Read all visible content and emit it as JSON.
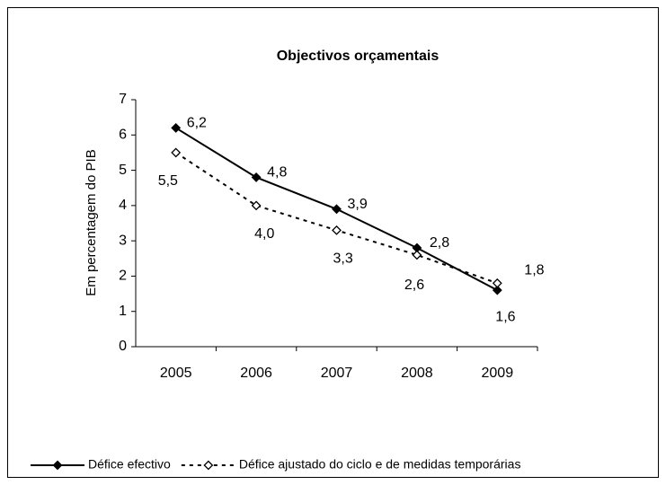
{
  "chart_data": {
    "type": "line",
    "title": "Objectivos orçamentais",
    "y_label": "Em percentagem do PIB",
    "categories": [
      "2005",
      "2006",
      "2007",
      "2008",
      "2009"
    ],
    "series": [
      {
        "name": "Défice efectivo",
        "color": "#000000",
        "style": "solid",
        "marker": "filled",
        "values": [
          6.2,
          4.8,
          3.9,
          2.8,
          1.6
        ],
        "value_labels": [
          "6,2",
          "4,8",
          "3,9",
          "2,8",
          "1,6"
        ]
      },
      {
        "name": "Défice ajustado do ciclo e de medidas temporárias",
        "color": "#000000",
        "style": "dashed",
        "marker": "hollow",
        "values": [
          5.5,
          4.0,
          3.3,
          2.6,
          1.8
        ],
        "value_labels": [
          "5,5",
          "4,0",
          "3,3",
          "2,6",
          "1,8"
        ]
      }
    ],
    "ylim": [
      0,
      7
    ],
    "yticks": [
      0,
      1,
      2,
      3,
      4,
      5,
      6,
      7
    ],
    "grid": false,
    "legend": "bottom"
  }
}
